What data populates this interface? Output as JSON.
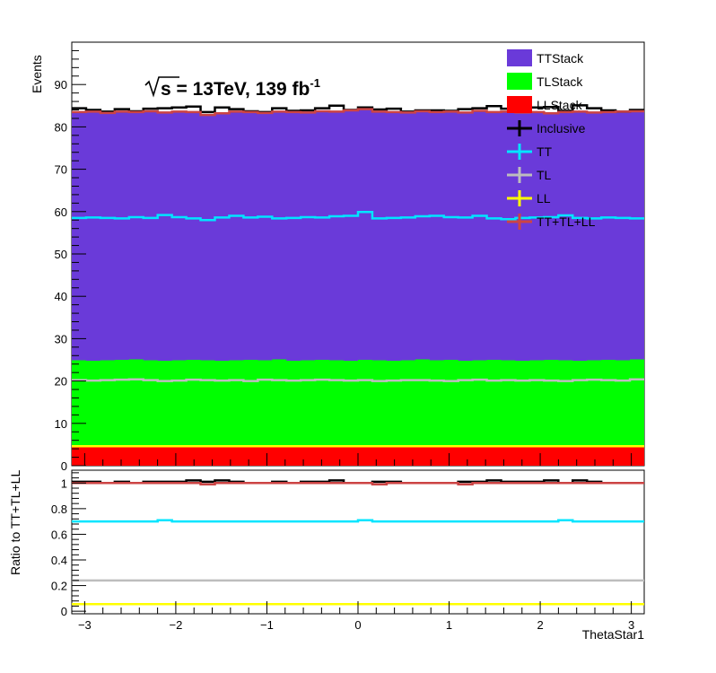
{
  "chart_data": [
    {
      "type": "histogram",
      "ylabel": "Events",
      "xlim": [
        -3.14159,
        3.14159
      ],
      "ylim": [
        0,
        100
      ],
      "y_ticks": [
        0,
        10,
        20,
        30,
        40,
        50,
        60,
        70,
        80,
        90
      ],
      "annotation": {
        "prefix": "s",
        "main": " = 13TeV, 139 fb",
        "sup": "-1"
      },
      "legend": {
        "placement": "top-right",
        "entries": [
          {
            "label": "TTStack",
            "style": "fill",
            "color": "#6a3ad9"
          },
          {
            "label": "TLStack",
            "style": "fill",
            "color": "#00ff00"
          },
          {
            "label": "LLStack",
            "style": "fill",
            "color": "#ff0000"
          },
          {
            "label": "Inclusive",
            "style": "line",
            "color": "#000000"
          },
          {
            "label": "TT",
            "style": "line",
            "color": "#00e5ff"
          },
          {
            "label": "TL",
            "style": "line",
            "color": "#bdbdbd"
          },
          {
            "label": "LL",
            "style": "line",
            "color": "#ffff00"
          },
          {
            "label": "TT+TL+LL",
            "style": "line",
            "color": "#cc4444"
          }
        ]
      },
      "stack": {
        "LL": [
          4.6,
          4.6,
          4.6,
          4.6,
          4.6,
          4.6,
          4.6,
          4.6,
          4.6,
          4.6,
          4.6,
          4.6,
          4.6,
          4.6,
          4.6,
          4.6,
          4.6,
          4.6,
          4.6,
          4.6,
          4.6,
          4.6,
          4.6,
          4.6,
          4.6,
          4.6,
          4.6,
          4.6,
          4.6,
          4.6,
          4.6,
          4.6,
          4.6,
          4.6,
          4.6,
          4.6,
          4.6,
          4.6,
          4.6,
          4.6
        ],
        "LL_TL": [
          24.9,
          24.8,
          24.9,
          25.0,
          25.1,
          24.9,
          24.8,
          24.9,
          25.0,
          24.9,
          24.8,
          24.9,
          25.0,
          24.9,
          25.1,
          24.8,
          24.9,
          25.0,
          24.9,
          24.8,
          25.0,
          24.9,
          24.8,
          24.9,
          25.1,
          24.9,
          25.0,
          24.8,
          24.9,
          25.0,
          24.9,
          24.8,
          24.9,
          25.0,
          24.9,
          24.8,
          24.9,
          25.0,
          24.9,
          25.1
        ],
        "LL_TL_TT": [
          83.5,
          83.6,
          83.3,
          83.6,
          83.5,
          83.7,
          83.4,
          83.6,
          83.5,
          82.8,
          83.2,
          83.6,
          83.5,
          83.3,
          83.6,
          83.5,
          83.4,
          83.7,
          83.6,
          83.9,
          84.2,
          83.6,
          83.5,
          83.4,
          83.7,
          83.5,
          83.6,
          83.4,
          83.8,
          83.5,
          83.6,
          83.4,
          83.5,
          83.2,
          83.5,
          83.6,
          83.4,
          83.5,
          83.6,
          83.7
        ]
      },
      "inclusive": [
        84.4,
        84.0,
        83.6,
        84.2,
        83.7,
        84.3,
        84.4,
        84.6,
        84.8,
        83.5,
        84.6,
        84.2,
        83.7,
        83.5,
        84.4,
        83.8,
        83.9,
        84.4,
        85.0,
        84.0,
        84.6,
        84.1,
        84.3,
        83.6,
        83.9,
        83.9,
        83.8,
        84.2,
        84.4,
        84.9,
        84.3,
        84.3,
        84.6,
        84.7,
        83.8,
        85.1,
        84.4,
        83.9,
        83.6,
        84.0
      ],
      "tt": [
        58.5,
        58.6,
        58.5,
        58.4,
        58.7,
        58.5,
        59.2,
        58.7,
        58.4,
        58.0,
        58.6,
        59.0,
        58.6,
        58.8,
        58.4,
        58.5,
        58.7,
        58.6,
        58.9,
        59.0,
        59.9,
        58.4,
        58.5,
        58.6,
        58.9,
        59.0,
        58.7,
        58.6,
        59.0,
        58.4,
        58.2,
        58.5,
        58.6,
        58.7,
        59.1,
        58.5,
        58.4,
        58.6,
        58.5,
        58.4
      ],
      "tl": [
        20.2,
        20.1,
        20.2,
        20.3,
        20.4,
        20.2,
        20.0,
        20.1,
        20.3,
        20.2,
        20.1,
        20.2,
        20.0,
        20.3,
        20.2,
        20.1,
        20.2,
        20.3,
        20.2,
        20.1,
        20.2,
        20.0,
        20.1,
        20.2,
        20.2,
        20.1,
        20.0,
        20.2,
        20.3,
        20.1,
        20.2,
        20.1,
        20.2,
        20.1,
        20.0,
        20.2,
        20.3,
        20.2,
        20.1,
        20.4
      ]
    },
    {
      "type": "line",
      "xlabel": "ThetaStar1",
      "ylabel": "Ratio to TT+TL+LL",
      "xlim": [
        -3.14159,
        3.14159
      ],
      "ylim": [
        -0.02,
        1.1
      ],
      "x_ticks": [
        -3,
        -2,
        -1,
        0,
        1,
        2,
        3
      ],
      "y_ticks": [
        0,
        0.2,
        0.4,
        0.6,
        0.8,
        1
      ],
      "series": {
        "inclusive": [
          1.01,
          1.01,
          1.0,
          1.01,
          1.0,
          1.01,
          1.01,
          1.01,
          1.02,
          1.01,
          1.02,
          1.01,
          1.0,
          1.0,
          1.01,
          1.0,
          1.01,
          1.01,
          1.02,
          1.0,
          1.0,
          1.01,
          1.01,
          1.0,
          1.0,
          1.0,
          1.0,
          1.01,
          1.01,
          1.02,
          1.01,
          1.01,
          1.01,
          1.02,
          1.0,
          1.02,
          1.01,
          1.0,
          1.0,
          1.0
        ],
        "tt": [
          0.7,
          0.7,
          0.7,
          0.7,
          0.7,
          0.7,
          0.71,
          0.7,
          0.7,
          0.7,
          0.7,
          0.7,
          0.7,
          0.7,
          0.7,
          0.7,
          0.7,
          0.7,
          0.7,
          0.7,
          0.71,
          0.7,
          0.7,
          0.7,
          0.7,
          0.7,
          0.7,
          0.7,
          0.7,
          0.7,
          0.7,
          0.7,
          0.7,
          0.7,
          0.71,
          0.7,
          0.7,
          0.7,
          0.7,
          0.7
        ],
        "tl": [
          0.24,
          0.24,
          0.24,
          0.24,
          0.24,
          0.24,
          0.24,
          0.24,
          0.24,
          0.24,
          0.24,
          0.24,
          0.24,
          0.24,
          0.24,
          0.24,
          0.24,
          0.24,
          0.24,
          0.24,
          0.24,
          0.24,
          0.24,
          0.24,
          0.24,
          0.24,
          0.24,
          0.24,
          0.24,
          0.24,
          0.24,
          0.24,
          0.24,
          0.24,
          0.24,
          0.24,
          0.24,
          0.24,
          0.24,
          0.24
        ],
        "ll": [
          0.055,
          0.055,
          0.055,
          0.055,
          0.055,
          0.055,
          0.055,
          0.055,
          0.055,
          0.055,
          0.055,
          0.055,
          0.055,
          0.055,
          0.055,
          0.055,
          0.055,
          0.055,
          0.055,
          0.055,
          0.055,
          0.055,
          0.055,
          0.055,
          0.055,
          0.055,
          0.055,
          0.055,
          0.055,
          0.055,
          0.055,
          0.055,
          0.055,
          0.055,
          0.055,
          0.055,
          0.055,
          0.055,
          0.055,
          0.055
        ],
        "sum": [
          1.0,
          1.0,
          1.0,
          1.0,
          1.0,
          1.0,
          1.0,
          1.0,
          1.0,
          0.99,
          1.0,
          1.0,
          1.0,
          1.0,
          1.0,
          1.0,
          1.0,
          1.0,
          1.0,
          1.0,
          1.0,
          0.99,
          1.0,
          1.0,
          1.0,
          1.0,
          1.0,
          0.99,
          1.0,
          1.0,
          1.0,
          1.0,
          1.0,
          1.0,
          1.0,
          1.0,
          1.0,
          1.0,
          1.0,
          1.0
        ]
      }
    }
  ]
}
